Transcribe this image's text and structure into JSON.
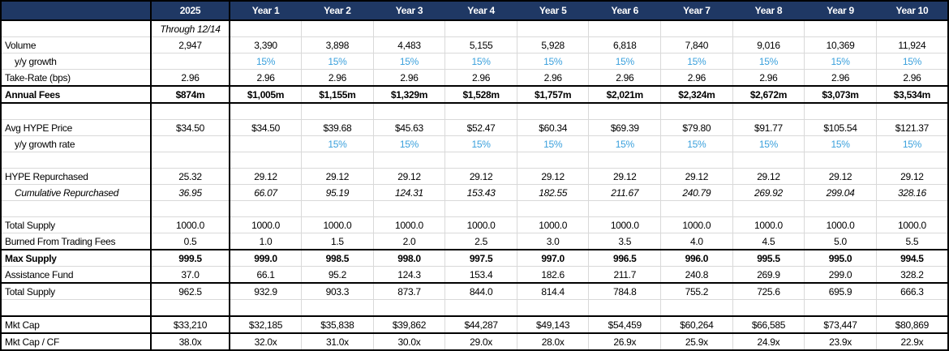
{
  "colors": {
    "header_bg": "#1f3864",
    "header_text": "#ffffff",
    "growth_blue": "#3aa0dc",
    "grid_line": "#d9d9d9",
    "border": "#000000"
  },
  "table": {
    "corner_label": "",
    "columns": [
      "2025",
      "Year 1",
      "Year 2",
      "Year 3",
      "Year 4",
      "Year 5",
      "Year 6",
      "Year 7",
      "Year 8",
      "Year 9",
      "Year 10"
    ],
    "rows": [
      {
        "label": "",
        "val_italic": true,
        "values": [
          "Through 12/14",
          "",
          "",
          "",
          "",
          "",
          "",
          "",
          "",
          "",
          ""
        ]
      },
      {
        "label": "Volume",
        "values": [
          "2,947",
          "3,390",
          "3,898",
          "4,483",
          "5,155",
          "5,928",
          "6,818",
          "7,840",
          "9,016",
          "10,369",
          "11,924"
        ]
      },
      {
        "label": "y/y growth",
        "indent": true,
        "val_blue": true,
        "values": [
          "",
          "15%",
          "15%",
          "15%",
          "15%",
          "15%",
          "15%",
          "15%",
          "15%",
          "15%",
          "15%"
        ]
      },
      {
        "label": "Take-Rate (bps)",
        "values": [
          "2.96",
          "2.96",
          "2.96",
          "2.96",
          "2.96",
          "2.96",
          "2.96",
          "2.96",
          "2.96",
          "2.96",
          "2.96"
        ]
      },
      {
        "label": "Annual Fees",
        "bold": true,
        "thick_top": true,
        "thick_bottom": true,
        "values": [
          "$874m",
          "$1,005m",
          "$1,155m",
          "$1,329m",
          "$1,528m",
          "$1,757m",
          "$2,021m",
          "$2,324m",
          "$2,672m",
          "$3,073m",
          "$3,534m"
        ]
      },
      {
        "label": "",
        "values": [
          "",
          "",
          "",
          "",
          "",
          "",
          "",
          "",
          "",
          "",
          ""
        ]
      },
      {
        "label": "Avg HYPE Price",
        "values": [
          "$34.50",
          "$34.50",
          "$39.68",
          "$45.63",
          "$52.47",
          "$60.34",
          "$69.39",
          "$79.80",
          "$91.77",
          "$105.54",
          "$121.37"
        ]
      },
      {
        "label": "y/y growth rate",
        "indent": true,
        "val_blue": true,
        "values": [
          "",
          "",
          "15%",
          "15%",
          "15%",
          "15%",
          "15%",
          "15%",
          "15%",
          "15%",
          "15%"
        ]
      },
      {
        "label": "",
        "values": [
          "",
          "",
          "",
          "",
          "",
          "",
          "",
          "",
          "",
          "",
          ""
        ]
      },
      {
        "label": "HYPE Repurchased",
        "values": [
          "25.32",
          "29.12",
          "29.12",
          "29.12",
          "29.12",
          "29.12",
          "29.12",
          "29.12",
          "29.12",
          "29.12",
          "29.12"
        ]
      },
      {
        "label": "Cumulative Repurchased",
        "indent": true,
        "label_italic": true,
        "val_italic": true,
        "values": [
          "36.95",
          "66.07",
          "95.19",
          "124.31",
          "153.43",
          "182.55",
          "211.67",
          "240.79",
          "269.92",
          "299.04",
          "328.16"
        ]
      },
      {
        "label": "",
        "values": [
          "",
          "",
          "",
          "",
          "",
          "",
          "",
          "",
          "",
          "",
          ""
        ]
      },
      {
        "label": "Total Supply",
        "values": [
          "1000.0",
          "1000.0",
          "1000.0",
          "1000.0",
          "1000.0",
          "1000.0",
          "1000.0",
          "1000.0",
          "1000.0",
          "1000.0",
          "1000.0"
        ]
      },
      {
        "label": "Burned From Trading Fees",
        "values": [
          "0.5",
          "1.0",
          "1.5",
          "2.0",
          "2.5",
          "3.0",
          "3.5",
          "4.0",
          "4.5",
          "5.0",
          "5.5"
        ]
      },
      {
        "label": "Max Supply",
        "bold": true,
        "thick_top": true,
        "values": [
          "999.5",
          "999.0",
          "998.5",
          "998.0",
          "997.5",
          "997.0",
          "996.5",
          "996.0",
          "995.5",
          "995.0",
          "994.5"
        ]
      },
      {
        "label": "Assistance Fund",
        "values": [
          "37.0",
          "66.1",
          "95.2",
          "124.3",
          "153.4",
          "182.6",
          "211.7",
          "240.8",
          "269.9",
          "299.0",
          "328.2"
        ]
      },
      {
        "label": "Total Supply",
        "thick_top": true,
        "values": [
          "962.5",
          "932.9",
          "903.3",
          "873.7",
          "844.0",
          "814.4",
          "784.8",
          "755.2",
          "725.6",
          "695.9",
          "666.3"
        ]
      },
      {
        "label": "",
        "values": [
          "",
          "",
          "",
          "",
          "",
          "",
          "",
          "",
          "",
          "",
          ""
        ]
      },
      {
        "label": "Mkt Cap",
        "thick_top": true,
        "values": [
          "$33,210",
          "$32,185",
          "$35,838",
          "$39,862",
          "$44,287",
          "$49,143",
          "$54,459",
          "$60,264",
          "$66,585",
          "$73,447",
          "$80,869"
        ]
      },
      {
        "label": "Mkt Cap / CF",
        "thick_top": true,
        "values": [
          "38.0x",
          "32.0x",
          "31.0x",
          "30.0x",
          "29.0x",
          "28.0x",
          "26.9x",
          "25.9x",
          "24.9x",
          "23.9x",
          "22.9x"
        ]
      }
    ]
  }
}
